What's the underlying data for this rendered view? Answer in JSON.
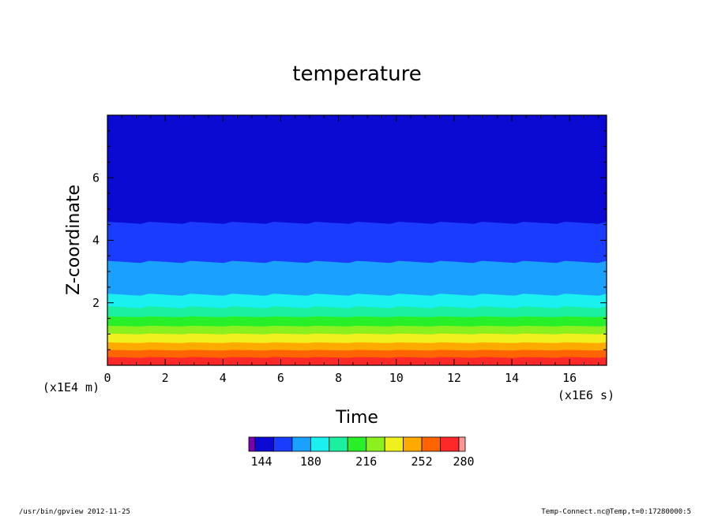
{
  "chart_data": {
    "type": "heatmap",
    "title": "temperature",
    "xlabel": "Time",
    "ylabel": "Z-coordinate",
    "x_unit_label": "(x1E6 s)",
    "y_unit_label": "(x1E4 m)",
    "xlim": [
      0,
      17.28
    ],
    "ylim": [
      0,
      8
    ],
    "x_ticks": [
      0,
      2,
      4,
      6,
      8,
      10,
      12,
      14,
      16
    ],
    "y_ticks": [
      2,
      4,
      6
    ],
    "colorbar": {
      "ticks": [
        144,
        180,
        216,
        252,
        280
      ],
      "bins": [
        {
          "color": "#7a00b0"
        },
        {
          "color": "#0a0ad2"
        },
        {
          "color": "#1a3cff"
        },
        {
          "color": "#1aa0ff"
        },
        {
          "color": "#1af0f0"
        },
        {
          "color": "#1af0a0"
        },
        {
          "color": "#28f028"
        },
        {
          "color": "#8cf01e"
        },
        {
          "color": "#f0f01e"
        },
        {
          "color": "#ffaa00"
        },
        {
          "color": "#ff6400"
        },
        {
          "color": "#ff2828"
        },
        {
          "color": "#ff9696"
        }
      ]
    },
    "contour_bands": [
      {
        "z_top": 8.0,
        "color": "#0a0ad2"
      },
      {
        "z_top": 4.55,
        "color": "#1a3cff"
      },
      {
        "z_top": 3.3,
        "color": "#1aa0ff"
      },
      {
        "z_top": 2.25,
        "color": "#1af0f0"
      },
      {
        "z_top": 1.85,
        "color": "#1af0a0"
      },
      {
        "z_top": 1.55,
        "color": "#28f028"
      },
      {
        "z_top": 1.25,
        "color": "#8cf01e"
      },
      {
        "z_top": 1.0,
        "color": "#f0f01e"
      },
      {
        "z_top": 0.72,
        "color": "#ffaa00"
      },
      {
        "z_top": 0.48,
        "color": "#ff6400"
      },
      {
        "z_top": 0.25,
        "color": "#ff2828"
      }
    ]
  },
  "footer": {
    "left": "/usr/bin/gpview   2012-11-25",
    "right": "Temp-Connect.nc@Temp,t=0:17280000:5"
  }
}
